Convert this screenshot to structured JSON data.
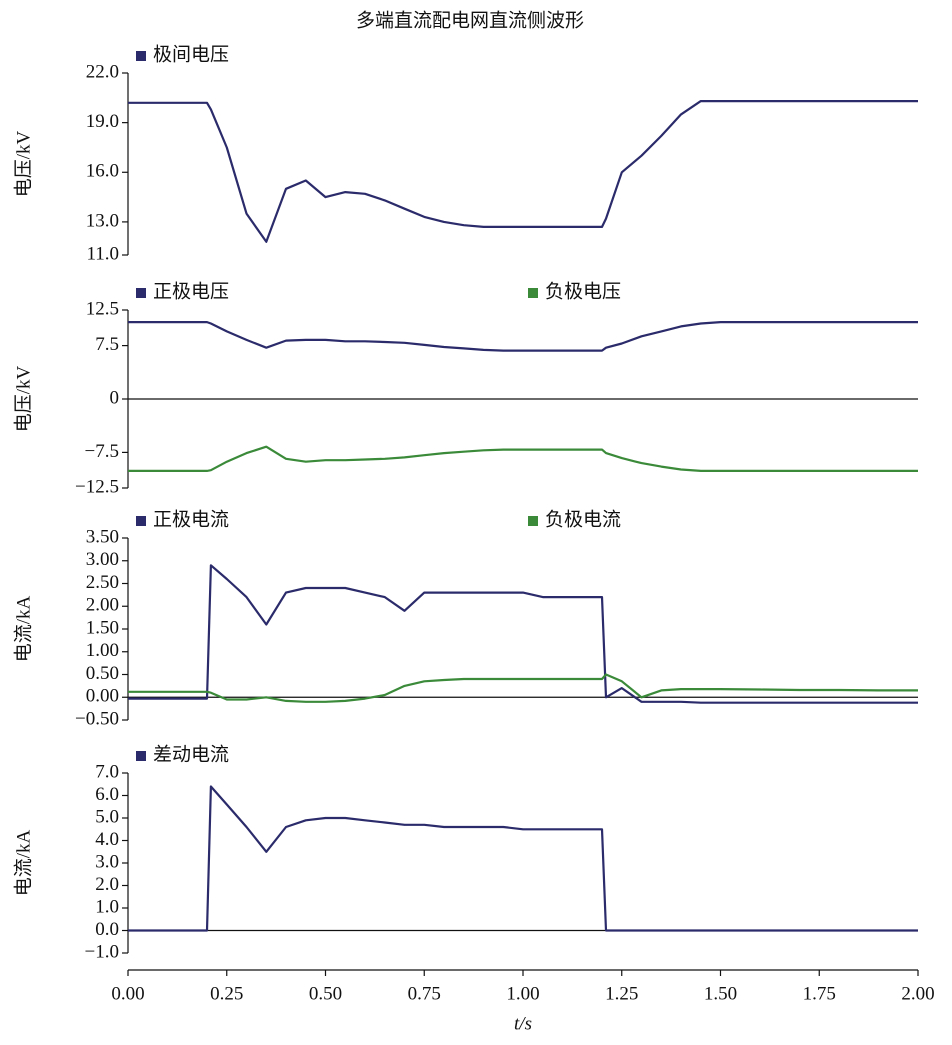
{
  "chart_data": [
    {
      "type": "line",
      "title": "多端直流配电网直流侧波形",
      "y_label": "电压/kV",
      "x": [
        0,
        0.05,
        0.1,
        0.15,
        0.2,
        0.21,
        0.25,
        0.3,
        0.35,
        0.4,
        0.45,
        0.5,
        0.55,
        0.6,
        0.65,
        0.7,
        0.75,
        0.8,
        0.85,
        0.9,
        0.95,
        1.0,
        1.05,
        1.1,
        1.15,
        1.2,
        1.21,
        1.25,
        1.3,
        1.35,
        1.4,
        1.45,
        1.5,
        1.6,
        1.7,
        1.8,
        1.9,
        2.0
      ],
      "xlim": [
        0,
        2
      ],
      "ylim": [
        11,
        22
      ],
      "yticks": [
        {
          "value": 11,
          "label": "11.0"
        },
        {
          "value": 13,
          "label": "13.0"
        },
        {
          "value": 16,
          "label": "16.0"
        },
        {
          "value": 19,
          "label": "19.0"
        },
        {
          "value": 22,
          "label": "22.0"
        }
      ],
      "series": [
        {
          "name": "极间电压",
          "color": "#2b2b6b",
          "values": [
            20.2,
            20.2,
            20.2,
            20.2,
            20.2,
            19.8,
            17.5,
            13.5,
            11.8,
            15.0,
            15.5,
            14.5,
            14.8,
            14.7,
            14.3,
            13.8,
            13.3,
            13.0,
            12.8,
            12.7,
            12.7,
            12.7,
            12.7,
            12.7,
            12.7,
            12.7,
            13.2,
            16.0,
            17.0,
            18.2,
            19.5,
            20.3,
            20.3,
            20.3,
            20.3,
            20.3,
            20.3,
            20.3
          ]
        }
      ]
    },
    {
      "type": "line",
      "y_label": "电压/kV",
      "zero_line": true,
      "x": [
        0,
        0.05,
        0.1,
        0.15,
        0.2,
        0.21,
        0.25,
        0.3,
        0.35,
        0.4,
        0.45,
        0.5,
        0.55,
        0.6,
        0.65,
        0.7,
        0.75,
        0.8,
        0.85,
        0.9,
        0.95,
        1.0,
        1.05,
        1.1,
        1.15,
        1.2,
        1.21,
        1.25,
        1.3,
        1.35,
        1.4,
        1.45,
        1.5,
        1.6,
        1.7,
        1.8,
        1.9,
        2.0
      ],
      "xlim": [
        0,
        2
      ],
      "ylim": [
        -12.5,
        12.5
      ],
      "yticks": [
        {
          "value": -12.5,
          "label": "−12.5"
        },
        {
          "value": -7.5,
          "label": "−7.5"
        },
        0,
        7.5,
        12.5
      ],
      "series": [
        {
          "name": "正极电压",
          "color": "#2b2b6b",
          "values": [
            10.8,
            10.8,
            10.8,
            10.8,
            10.8,
            10.6,
            9.5,
            8.3,
            7.2,
            8.2,
            8.3,
            8.3,
            8.1,
            8.1,
            8.0,
            7.9,
            7.6,
            7.3,
            7.1,
            6.9,
            6.8,
            6.8,
            6.8,
            6.8,
            6.8,
            6.8,
            7.2,
            7.8,
            8.8,
            9.5,
            10.2,
            10.6,
            10.8,
            10.8,
            10.8,
            10.8,
            10.8,
            10.8
          ]
        },
        {
          "name": "负极电压",
          "color": "#3a8a3a",
          "values": [
            -10.1,
            -10.1,
            -10.1,
            -10.1,
            -10.1,
            -10.0,
            -8.8,
            -7.6,
            -6.7,
            -8.4,
            -8.8,
            -8.6,
            -8.6,
            -8.5,
            -8.4,
            -8.2,
            -7.9,
            -7.6,
            -7.4,
            -7.2,
            -7.1,
            -7.1,
            -7.1,
            -7.1,
            -7.1,
            -7.1,
            -7.6,
            -8.3,
            -9.0,
            -9.5,
            -9.9,
            -10.1,
            -10.1,
            -10.1,
            -10.1,
            -10.1,
            -10.1,
            -10.1
          ]
        }
      ]
    },
    {
      "type": "line",
      "y_label": "电流/kA",
      "zero_line": true,
      "x": [
        0,
        0.05,
        0.1,
        0.15,
        0.2,
        0.21,
        0.25,
        0.3,
        0.35,
        0.4,
        0.45,
        0.5,
        0.55,
        0.6,
        0.65,
        0.7,
        0.75,
        0.8,
        0.85,
        0.9,
        0.95,
        1.0,
        1.05,
        1.1,
        1.15,
        1.2,
        1.21,
        1.25,
        1.3,
        1.35,
        1.4,
        1.45,
        1.5,
        1.6,
        1.7,
        1.8,
        1.9,
        2.0
      ],
      "xlim": [
        0,
        2
      ],
      "ylim": [
        -0.5,
        3.5
      ],
      "yticks": [
        {
          "value": -0.5,
          "label": "−0.50"
        },
        {
          "value": 0,
          "label": "0.00"
        },
        {
          "value": 0.5,
          "label": "0.50"
        },
        {
          "value": 1,
          "label": "1.00"
        },
        {
          "value": 1.5,
          "label": "1.50"
        },
        {
          "value": 2,
          "label": "2.00"
        },
        {
          "value": 2.5,
          "label": "2.50"
        },
        {
          "value": 3,
          "label": "3.00"
        },
        {
          "value": 3.5,
          "label": "3.50"
        }
      ],
      "series": [
        {
          "name": "正极电流",
          "color": "#2b2b6b",
          "values": [
            -0.03,
            -0.03,
            -0.03,
            -0.03,
            -0.03,
            2.9,
            2.6,
            2.2,
            1.6,
            2.3,
            2.4,
            2.4,
            2.4,
            2.3,
            2.2,
            1.9,
            2.3,
            2.3,
            2.3,
            2.3,
            2.3,
            2.3,
            2.2,
            2.2,
            2.2,
            2.2,
            0.0,
            0.2,
            -0.1,
            -0.1,
            -0.1,
            -0.12,
            -0.12,
            -0.12,
            -0.12,
            -0.12,
            -0.12,
            -0.12
          ]
        },
        {
          "name": "负极电流",
          "color": "#3a8a3a",
          "values": [
            0.12,
            0.12,
            0.12,
            0.12,
            0.12,
            0.1,
            -0.05,
            -0.05,
            0.0,
            -0.08,
            -0.1,
            -0.1,
            -0.08,
            -0.03,
            0.05,
            0.25,
            0.35,
            0.38,
            0.4,
            0.4,
            0.4,
            0.4,
            0.4,
            0.4,
            0.4,
            0.4,
            0.5,
            0.35,
            0.0,
            0.15,
            0.18,
            0.18,
            0.18,
            0.17,
            0.16,
            0.16,
            0.15,
            0.15
          ]
        }
      ]
    },
    {
      "type": "line",
      "y_label": "电流/kA",
      "x_label": "t/s",
      "zero_line": true,
      "x": [
        0,
        0.05,
        0.1,
        0.15,
        0.2,
        0.21,
        0.25,
        0.3,
        0.35,
        0.4,
        0.45,
        0.5,
        0.55,
        0.6,
        0.65,
        0.7,
        0.75,
        0.8,
        0.85,
        0.9,
        0.95,
        1.0,
        1.05,
        1.1,
        1.15,
        1.2,
        1.21,
        1.25,
        1.3,
        1.35,
        1.4,
        1.45,
        1.5,
        1.6,
        1.7,
        1.8,
        1.9,
        2.0
      ],
      "xlim": [
        0,
        2
      ],
      "ylim": [
        -1,
        7
      ],
      "xticks": [
        {
          "value": 0,
          "label": "0.00"
        },
        {
          "value": 0.25,
          "label": "0.25"
        },
        {
          "value": 0.5,
          "label": "0.50"
        },
        {
          "value": 0.75,
          "label": "0.75"
        },
        {
          "value": 1,
          "label": "1.00"
        },
        {
          "value": 1.25,
          "label": "1.25"
        },
        {
          "value": 1.5,
          "label": "1.50"
        },
        {
          "value": 1.75,
          "label": "1.75"
        },
        {
          "value": 2,
          "label": "2.00"
        }
      ],
      "yticks": [
        {
          "value": -1,
          "label": "−1.0"
        },
        {
          "value": 0,
          "label": "0.0"
        },
        {
          "value": 1,
          "label": "1.0"
        },
        {
          "value": 2,
          "label": "2.0"
        },
        {
          "value": 3,
          "label": "3.0"
        },
        {
          "value": 4,
          "label": "4.0"
        },
        {
          "value": 5,
          "label": "5.0"
        },
        {
          "value": 6,
          "label": "6.0"
        },
        {
          "value": 7,
          "label": "7.0"
        }
      ],
      "series": [
        {
          "name": "差动电流",
          "color": "#2b2b6b",
          "values": [
            0,
            0,
            0,
            0,
            0,
            6.4,
            5.6,
            4.6,
            3.5,
            4.6,
            4.9,
            5.0,
            5.0,
            4.9,
            4.8,
            4.7,
            4.7,
            4.6,
            4.6,
            4.6,
            4.6,
            4.5,
            4.5,
            4.5,
            4.5,
            4.5,
            0,
            0,
            0,
            0,
            0,
            0,
            0,
            0,
            0,
            0,
            0,
            0
          ]
        }
      ]
    }
  ]
}
